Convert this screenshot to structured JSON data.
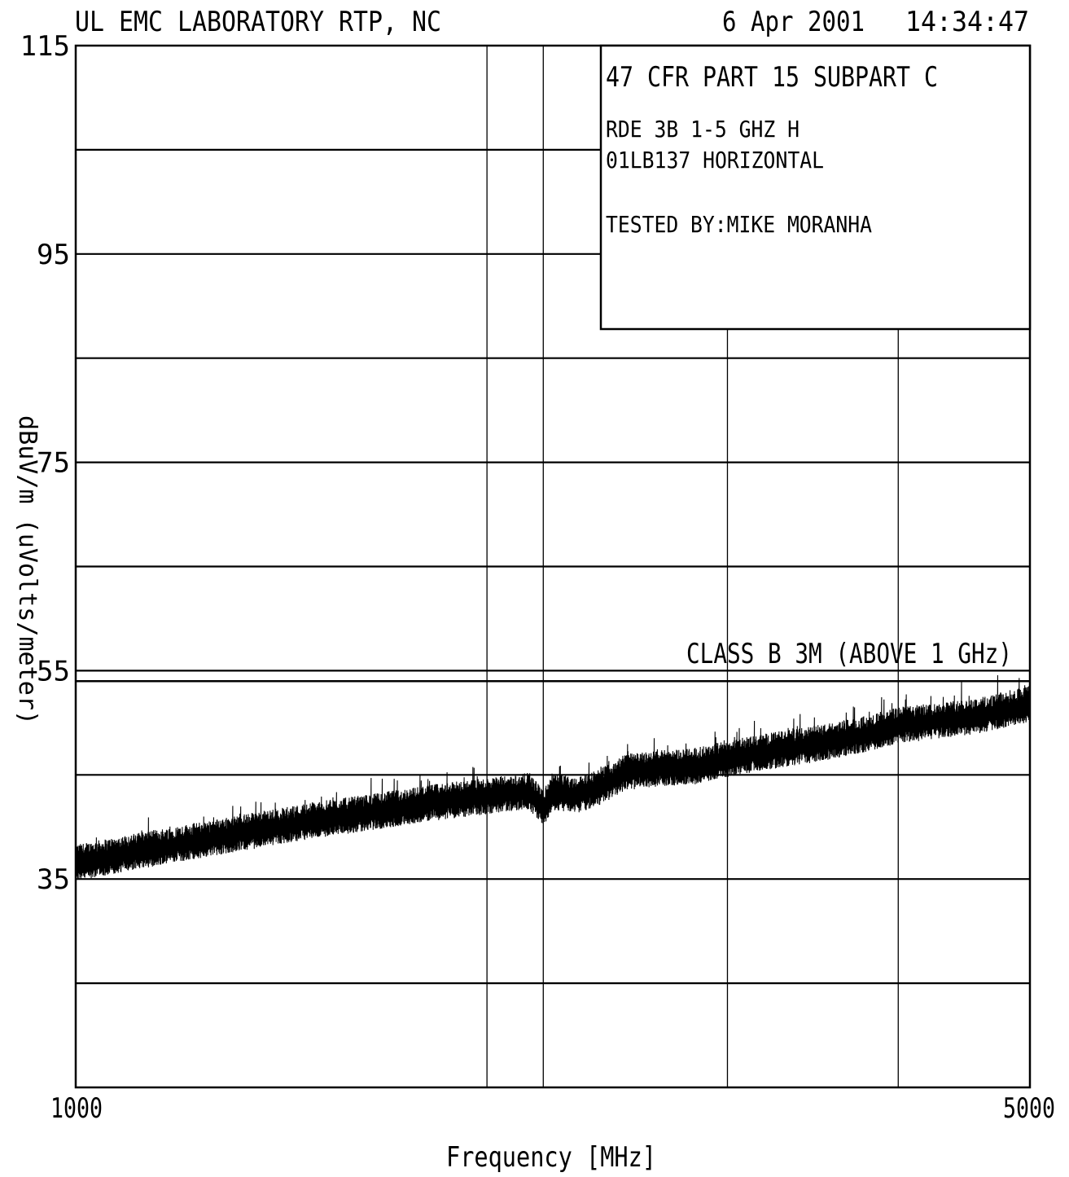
{
  "header": {
    "lab": "UL EMC LABORATORY RTP, NC",
    "date": "6 Apr 2001",
    "time": "14:34:47"
  },
  "info_box": {
    "line1": "47 CFR PART 15 SUBPART C",
    "line2": "RDE 3B 1-5 GHZ H",
    "line3": "01LB137 HORIZONTAL",
    "line4": "TESTED BY:MIKE MORANHA"
  },
  "chart_data": {
    "type": "line",
    "xlabel": "Frequency [MHz]",
    "ylabel": "dBuV/m (uVolts/meter)",
    "xlim": [
      1000,
      5000
    ],
    "ylim": [
      15,
      115
    ],
    "x_ticks": [
      "1000",
      "5000"
    ],
    "y_ticks": [
      {
        "value": 115,
        "label": "115"
      },
      {
        "value": 95,
        "label": "95"
      },
      {
        "value": 75,
        "label": "75"
      },
      {
        "value": 55,
        "label": "55"
      },
      {
        "value": 35,
        "label": "35"
      }
    ],
    "h_gridlines": [
      25,
      35,
      45,
      55,
      65,
      75,
      85,
      95,
      105
    ],
    "v_gridlines": [
      2724,
      2960,
      3732,
      4448
    ],
    "limit_line": {
      "name": "CLASS B 3M (ABOVE 1 GHz)",
      "value": 54
    },
    "series": [
      {
        "x": [
          1000,
          1250,
          1500,
          1750,
          2000,
          2250,
          2500,
          2724,
          2900,
          2960,
          3000,
          3100,
          3200,
          3300,
          3450,
          3600,
          3732,
          3900,
          4100,
          4300,
          4448,
          4600,
          4800,
          5000
        ],
        "y": [
          36.5,
          37.6,
          38.6,
          39.6,
          40.6,
          41.4,
          42.3,
          42.9,
          43.4,
          41.8,
          43.3,
          43.0,
          43.8,
          45.2,
          45.6,
          45.8,
          46.5,
          47.2,
          47.9,
          48.8,
          49.7,
          50.1,
          50.7,
          51.8
        ]
      }
    ]
  }
}
